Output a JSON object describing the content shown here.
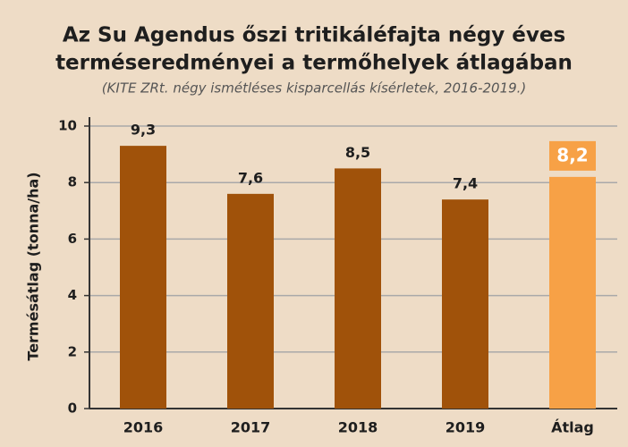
{
  "chart_data": {
    "type": "bar",
    "title": [
      "Az Su Agendus őszi tritikáléfajta négy éves",
      "terméseredményei a termőhelyek átlagában"
    ],
    "subtitle": "(KITE ZRt. négy ismétléses kisparcellás kísérletek, 2016-2019.)",
    "y_label": "Termésátlag (tonna/ha)",
    "categories": [
      "2016",
      "2017",
      "2018",
      "2019",
      "Átlag"
    ],
    "values": [
      9.3,
      7.6,
      8.5,
      7.4,
      8.2
    ],
    "value_labels": [
      "9,3",
      "7,6",
      "8,5",
      "7,4",
      "8,2"
    ],
    "colors": [
      "#a0520a",
      "#a0520a",
      "#a0520a",
      "#a0520a",
      "#f7a146"
    ],
    "ylim": [
      0,
      10
    ],
    "yticks": [
      0,
      2,
      4,
      6,
      8,
      10
    ],
    "grid": true
  }
}
